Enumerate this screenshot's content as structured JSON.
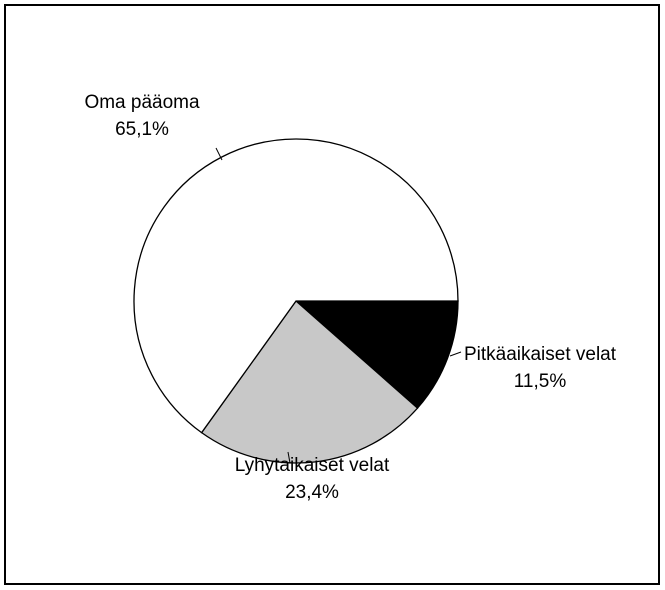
{
  "chart_data": {
    "type": "pie",
    "categories": [
      "Pitkäaikaiset velat",
      "Lyhytaikaiset velat",
      "Oma pääoma"
    ],
    "values": [
      11.5,
      23.4,
      65.1
    ],
    "value_labels": [
      "11,5%",
      "23,4%",
      "65,1%"
    ],
    "colors": [
      "#000000",
      "#c8c8c8",
      "#ffffff"
    ]
  }
}
